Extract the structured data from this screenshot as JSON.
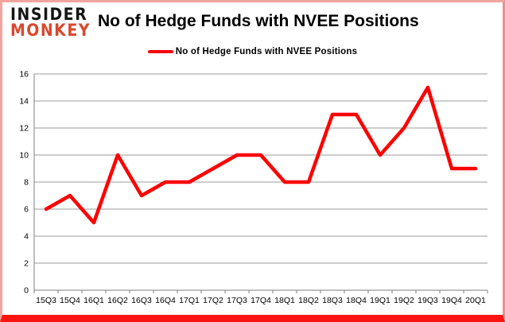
{
  "logo": {
    "line1": "INSIDER",
    "line2": "MONKEY"
  },
  "header": {
    "title": "No of Hedge Funds with NVEE Positions"
  },
  "legend": {
    "label": "No of Hedge Funds with NVEE Positions"
  },
  "colors": {
    "series_line": "#fe0000",
    "logo_black": "#151515",
    "logo_red": "#d8482e",
    "gridline": "#9b9b9b",
    "axis": "#7f7f7f",
    "border_sides": "#f2a49e",
    "border_bottom": "#fb1310",
    "text": "#000000",
    "background": "#ffffff"
  },
  "chart_data": {
    "type": "line",
    "title": "No of Hedge Funds with NVEE Positions",
    "categories": [
      "15Q3",
      "15Q4",
      "16Q1",
      "16Q2",
      "16Q3",
      "16Q4",
      "17Q1",
      "17Q2",
      "17Q3",
      "17Q4",
      "18Q1",
      "18Q2",
      "18Q3",
      "18Q4",
      "19Q1",
      "19Q2",
      "19Q3",
      "19Q4",
      "20Q1"
    ],
    "series": [
      {
        "name": "No of Hedge Funds with NVEE Positions",
        "values": [
          6,
          7,
          5,
          10,
          7,
          8,
          8,
          9,
          10,
          10,
          8,
          8,
          13,
          13,
          10,
          12,
          15,
          9,
          9
        ]
      }
    ],
    "xlabel": "",
    "ylabel": "",
    "ylim": [
      0,
      16
    ],
    "ytick_step": 2,
    "grid": true,
    "legend_position": "top-center"
  }
}
